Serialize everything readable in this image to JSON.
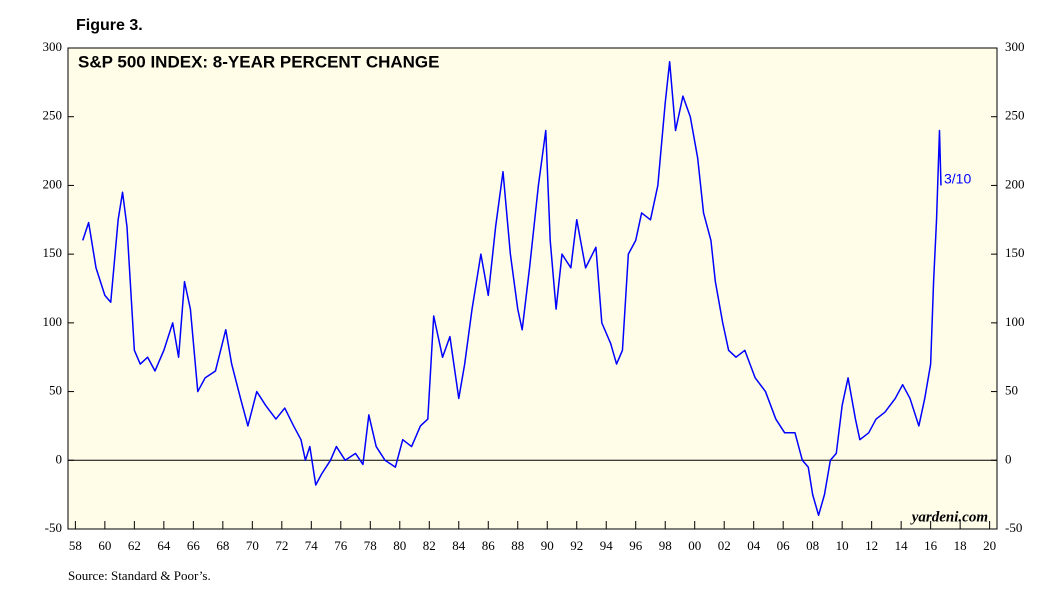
{
  "chart_data": {
    "type": "line",
    "figure_label": "Figure 3.",
    "title": "S&P 500 INDEX: 8-YEAR PERCENT CHANGE",
    "annotation": "3/10",
    "watermark": "yardeni.com",
    "source": "Source: Standard & Poor’s.",
    "color": "#0000ff",
    "x": [
      1958.5,
      1958.9,
      1959.4,
      1960.0,
      1960.4,
      1960.9,
      1961.2,
      1961.5,
      1962.0,
      1962.4,
      1962.9,
      1963.4,
      1964.0,
      1964.6,
      1965.0,
      1965.4,
      1965.8,
      1966.3,
      1966.8,
      1967.5,
      1968.2,
      1968.6,
      1969.2,
      1969.7,
      1970.3,
      1970.9,
      1971.6,
      1972.2,
      1972.8,
      1973.3,
      1973.6,
      1973.9,
      1974.3,
      1974.7,
      1975.3,
      1975.7,
      1976.3,
      1977.0,
      1977.5,
      1977.9,
      1978.4,
      1979.0,
      1979.7,
      1980.2,
      1980.8,
      1981.4,
      1981.9,
      1982.3,
      1982.5,
      1982.9,
      1983.4,
      1984.0,
      1984.4,
      1984.9,
      1985.5,
      1986.0,
      1986.5,
      1987.0,
      1987.5,
      1988.0,
      1988.3,
      1988.8,
      1989.4,
      1989.9,
      1990.2,
      1990.6,
      1991.0,
      1991.6,
      1992.0,
      1992.6,
      1993.3,
      1993.7,
      1994.3,
      1994.7,
      1995.1,
      1995.5,
      1996.0,
      1996.4,
      1997.0,
      1997.5,
      1998.0,
      1998.3,
      1998.7,
      1999.2,
      1999.7,
      2000.2,
      2000.6,
      2001.1,
      2001.4,
      2001.9,
      2002.3,
      2002.8,
      2003.4,
      2004.1,
      2004.8,
      2005.5,
      2006.1,
      2006.8,
      2007.3,
      2007.7,
      2008.0,
      2008.4,
      2008.8,
      2009.2,
      2009.6,
      2010.0,
      2010.4,
      2010.9,
      2011.2,
      2011.8,
      2012.3,
      2012.9,
      2013.6,
      2014.1,
      2014.6,
      2015.2,
      2015.6,
      2016.0,
      2016.2,
      2016.4,
      2016.6,
      2016.7
    ],
    "values": [
      160,
      173,
      140,
      120,
      115,
      175,
      195,
      170,
      80,
      70,
      75,
      65,
      80,
      100,
      75,
      130,
      110,
      50,
      60,
      65,
      95,
      70,
      45,
      25,
      50,
      40,
      30,
      38,
      25,
      15,
      0,
      10,
      -18,
      -10,
      0,
      10,
      0,
      5,
      -3,
      33,
      10,
      0,
      -5,
      15,
      10,
      25,
      30,
      105,
      95,
      75,
      90,
      45,
      70,
      110,
      150,
      120,
      170,
      210,
      150,
      110,
      95,
      140,
      200,
      240,
      160,
      110,
      150,
      140,
      175,
      140,
      155,
      100,
      85,
      70,
      80,
      150,
      160,
      180,
      175,
      200,
      260,
      290,
      240,
      265,
      250,
      220,
      180,
      160,
      130,
      100,
      80,
      75,
      80,
      60,
      50,
      30,
      20,
      20,
      0,
      -5,
      -25,
      -40,
      -25,
      0,
      5,
      40,
      60,
      30,
      15,
      20,
      30,
      35,
      45,
      55,
      45,
      25,
      45,
      70,
      130,
      175,
      240,
      200
    ],
    "xlim": [
      1957.5,
      2020.5
    ],
    "xticks": [
      {
        "value": 1958,
        "label": "58"
      },
      {
        "value": 1960,
        "label": "60"
      },
      {
        "value": 1962,
        "label": "62"
      },
      {
        "value": 1964,
        "label": "64"
      },
      {
        "value": 1966,
        "label": "66"
      },
      {
        "value": 1968,
        "label": "68"
      },
      {
        "value": 1970,
        "label": "70"
      },
      {
        "value": 1972,
        "label": "72"
      },
      {
        "value": 1974,
        "label": "74"
      },
      {
        "value": 1976,
        "label": "76"
      },
      {
        "value": 1978,
        "label": "78"
      },
      {
        "value": 1980,
        "label": "80"
      },
      {
        "value": 1982,
        "label": "82"
      },
      {
        "value": 1984,
        "label": "84"
      },
      {
        "value": 1986,
        "label": "86"
      },
      {
        "value": 1988,
        "label": "88"
      },
      {
        "value": 1990,
        "label": "90"
      },
      {
        "value": 1992,
        "label": "92"
      },
      {
        "value": 1994,
        "label": "94"
      },
      {
        "value": 1996,
        "label": "96"
      },
      {
        "value": 1998,
        "label": "98"
      },
      {
        "value": 2000,
        "label": "00"
      },
      {
        "value": 2002,
        "label": "02"
      },
      {
        "value": 2004,
        "label": "04"
      },
      {
        "value": 2006,
        "label": "06"
      },
      {
        "value": 2008,
        "label": "08"
      },
      {
        "value": 2010,
        "label": "10"
      },
      {
        "value": 2012,
        "label": "12"
      },
      {
        "value": 2014,
        "label": "14"
      },
      {
        "value": 2016,
        "label": "16"
      },
      {
        "value": 2018,
        "label": "18"
      },
      {
        "value": 2020,
        "label": "20"
      }
    ],
    "ylim": [
      -50,
      300
    ],
    "yticks": [
      -50,
      0,
      50,
      100,
      150,
      200,
      250,
      300
    ],
    "y2lim": [
      -50,
      300
    ],
    "y2ticks": [
      -50,
      0,
      50,
      100,
      150,
      200,
      250,
      300
    ]
  }
}
